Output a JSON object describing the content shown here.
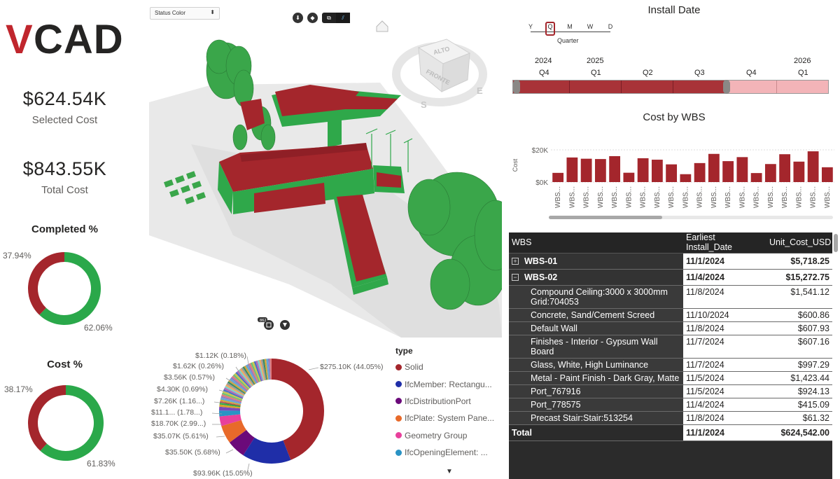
{
  "brand": {
    "logo_text": "VCAD",
    "red": "#c0262d",
    "dark": "#252423"
  },
  "kpis": {
    "selected": {
      "value": "$624.54K",
      "label": "Selected Cost"
    },
    "total": {
      "value": "$843.55K",
      "label": "Total Cost"
    }
  },
  "completed": {
    "title": "Completed %",
    "slices": [
      {
        "label": "37.94%",
        "value": 37.94,
        "color": "#a4262c"
      },
      {
        "label": "62.06%",
        "value": 62.06,
        "color": "#2aa84a"
      }
    ]
  },
  "cost_pct": {
    "title": "Cost %",
    "slices": [
      {
        "label": "38.17%",
        "value": 38.17,
        "color": "#a4262c"
      },
      {
        "label": "61.83%",
        "value": 61.83,
        "color": "#2aa84a"
      }
    ]
  },
  "viewer": {
    "status_select": "Status Color",
    "nav_cube_top": "ALTO",
    "nav_cube_front": "FRONTE",
    "compass_s": "S",
    "compass_e": "E",
    "counter_badge": "862",
    "colors": {
      "red": "#a4262c",
      "green": "#2fa84a",
      "tree": "#3aa64a"
    }
  },
  "type_pie": {
    "labels": [
      "$275.10K (44.05%)",
      "$93.96K (15.05%)",
      "$35.50K (5.68%)",
      "$35.07K (5.61%)",
      "$18.70K (2.99...)",
      "$11.1... (1.78...)",
      "$7.26K (1.16...)",
      "$4.30K (0.69%)",
      "$3.56K (0.57%)",
      "$1.62K (0.26%)",
      "$1.12K (0.18%)"
    ],
    "slices": [
      {
        "value": 44.05,
        "color": "#a4262c"
      },
      {
        "value": 15.05,
        "color": "#1f2ea8"
      },
      {
        "value": 5.68,
        "color": "#6b0a7a"
      },
      {
        "value": 5.61,
        "color": "#e86a2a"
      },
      {
        "value": 2.99,
        "color": "#e8409c"
      },
      {
        "value": 1.78,
        "color": "#2a93c4"
      },
      {
        "value": 1.16,
        "color": "#7a4ab8"
      },
      {
        "value": 0.69,
        "color": "#d6a22a"
      },
      {
        "value": 0.57,
        "color": "#2fa84a"
      },
      {
        "value": 0.26,
        "color": "#8c4a2a"
      },
      {
        "value": 0.18,
        "color": "#c43a6a"
      }
    ],
    "legend_title": "type",
    "legend": [
      {
        "label": "Solid",
        "color": "#a4262c"
      },
      {
        "label": "IfcMember: Rectangu...",
        "color": "#1f2ea8"
      },
      {
        "label": "IfcDistributionPort",
        "color": "#6b0a7a"
      },
      {
        "label": "IfcPlate: System Pane...",
        "color": "#e86a2a"
      },
      {
        "label": "Geometry Group",
        "color": "#e8409c"
      },
      {
        "label": "IfcOpeningElement: ...",
        "color": "#2a93c4"
      }
    ],
    "more_icon": "▼"
  },
  "install_date": {
    "title": "Install Date",
    "granularity": [
      "Y",
      "Q",
      "M",
      "W",
      "D"
    ],
    "granularity_selected": "Quarter",
    "years": [
      "2024",
      "2025",
      "2026"
    ],
    "quarters": [
      "Q4",
      "Q1",
      "Q2",
      "Q3",
      "Q4",
      "Q1"
    ],
    "selected_count": 4
  },
  "cost_by_wbs": {
    "title": "Cost by WBS",
    "ylabel": "Cost",
    "yticks": [
      "$20K",
      "$0K"
    ],
    "bar_color": "#a4262c"
  },
  "chart_data": {
    "type": "bar",
    "title": "Cost by WBS",
    "ylabel": "Cost",
    "ylim": [
      0,
      20000
    ],
    "categories": [
      "WBS...",
      "WBS...",
      "WBS...",
      "WBS...",
      "WBS...",
      "WBS...",
      "WBS...",
      "WBS...",
      "WBS...",
      "WBS...",
      "WBS...",
      "WBS...",
      "WBS...",
      "WBS...",
      "WBS...",
      "WBS...",
      "WBS...",
      "WBS...",
      "WBS...",
      "WBS..."
    ],
    "values": [
      5718,
      15272,
      14500,
      14300,
      16100,
      5800,
      14800,
      13900,
      11000,
      4900,
      11800,
      17500,
      13000,
      15500,
      5600,
      11200,
      17300,
      12700,
      19100,
      9200
    ]
  },
  "table": {
    "headers": [
      "WBS",
      "Earliest Install_Date",
      "Unit_Cost_USD"
    ],
    "rows": [
      {
        "level": 1,
        "expander": "⊞",
        "wbs": "WBS-01",
        "date": "11/1/2024",
        "cost": "$5,718.25"
      },
      {
        "level": 1,
        "expander": "⊟",
        "wbs": "WBS-02",
        "date": "11/4/2024",
        "cost": "$15,272.75"
      },
      {
        "level": 2,
        "wbs": "Compound Ceiling:3000 x 3000mm Grid:704053",
        "date": "11/8/2024",
        "cost": "$1,541.12"
      },
      {
        "level": 2,
        "wbs": "Concrete, Sand/Cement Screed",
        "date": "11/10/2024",
        "cost": "$600.86"
      },
      {
        "level": 2,
        "wbs": "Default Wall",
        "date": "11/8/2024",
        "cost": "$607.93"
      },
      {
        "level": 2,
        "wbs": "Finishes - Interior - Gypsum Wall Board",
        "date": "11/7/2024",
        "cost": "$607.16"
      },
      {
        "level": 2,
        "wbs": "Glass, White, High Luminance",
        "date": "11/7/2024",
        "cost": "$997.29"
      },
      {
        "level": 2,
        "wbs": "Metal - Paint Finish - Dark Gray, Matte",
        "date": "11/5/2024",
        "cost": "$1,423.44"
      },
      {
        "level": 2,
        "wbs": "Port_767916",
        "date": "11/5/2024",
        "cost": "$924.13"
      },
      {
        "level": 2,
        "wbs": "Port_778575",
        "date": "11/4/2024",
        "cost": "$415.09"
      },
      {
        "level": 2,
        "wbs": "Precast Stair:Stair:513254",
        "date": "11/8/2024",
        "cost": "$61.32"
      }
    ],
    "total": {
      "label": "Total",
      "date": "11/1/2024",
      "cost": "$624,542.00"
    }
  }
}
